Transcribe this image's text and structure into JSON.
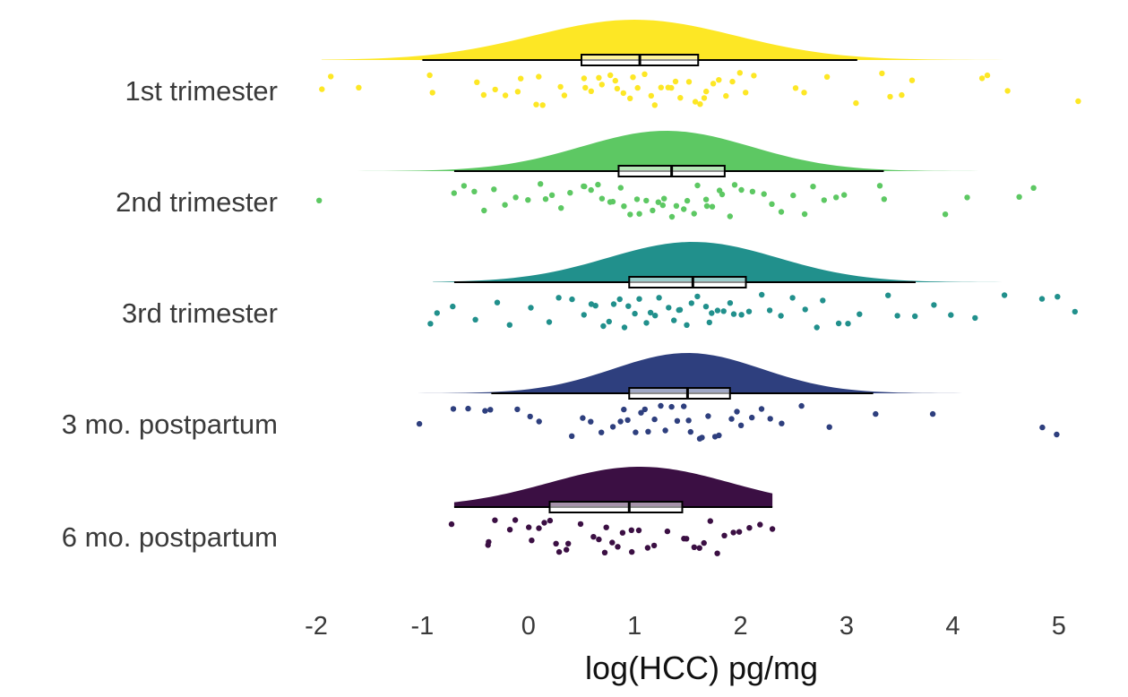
{
  "chart_data": {
    "type": "raincloud",
    "title": "",
    "xlabel": "log(HCC) pg/mg",
    "ylabel": "",
    "xlim": [
      -2,
      5.2
    ],
    "xticks": [
      -2,
      -1,
      0,
      1,
      2,
      3,
      4,
      5
    ],
    "xtick_labels": [
      "-2",
      "-1",
      "0",
      "1",
      "2",
      "3",
      "4",
      "5"
    ],
    "grid": false,
    "legend": "none",
    "series": [
      {
        "name": "1st trimester",
        "color": "#FDE725",
        "box": {
          "whisker_low": -1.0,
          "q1": 0.5,
          "median": 1.05,
          "q3": 1.6,
          "whisker_high": 3.1
        },
        "range": [
          -1.95,
          5.2
        ],
        "density_peak": 1.0,
        "density_sd": 0.95,
        "points": [
          -1.95,
          -1.85,
          -1.6,
          -0.95,
          -0.9,
          -0.5,
          -0.4,
          -0.3,
          -0.2,
          -0.1,
          -0.05,
          0.05,
          0.1,
          0.15,
          0.3,
          0.35,
          0.5,
          0.55,
          0.6,
          0.65,
          0.7,
          0.75,
          0.8,
          0.85,
          0.9,
          0.95,
          1.0,
          1.05,
          1.1,
          1.15,
          1.2,
          1.25,
          1.3,
          1.35,
          1.4,
          1.45,
          1.5,
          1.55,
          1.6,
          1.65,
          1.7,
          1.75,
          1.8,
          1.85,
          1.9,
          2.0,
          2.05,
          2.1,
          2.5,
          2.6,
          2.8,
          3.1,
          3.35,
          3.4,
          3.5,
          3.6,
          4.3,
          4.35,
          4.5,
          5.2
        ]
      },
      {
        "name": "2nd trimester",
        "color": "#5DC863",
        "box": {
          "whisker_low": -0.7,
          "q1": 0.85,
          "median": 1.35,
          "q3": 1.85,
          "whisker_high": 3.35
        },
        "range": [
          -1.95,
          4.75
        ],
        "density_peak": 1.3,
        "density_sd": 0.8,
        "points": [
          -1.95,
          -0.7,
          -0.6,
          -0.5,
          -0.4,
          -0.3,
          -0.2,
          -0.1,
          0.0,
          0.1,
          0.15,
          0.2,
          0.3,
          0.4,
          0.5,
          0.55,
          0.6,
          0.65,
          0.7,
          0.75,
          0.8,
          0.85,
          0.9,
          0.95,
          1.0,
          1.05,
          1.1,
          1.15,
          1.2,
          1.25,
          1.3,
          1.35,
          1.4,
          1.45,
          1.5,
          1.55,
          1.6,
          1.65,
          1.7,
          1.75,
          1.8,
          1.85,
          1.9,
          1.95,
          2.0,
          2.1,
          2.2,
          2.3,
          2.4,
          2.5,
          2.6,
          2.7,
          2.8,
          2.9,
          3.0,
          3.3,
          3.35,
          3.95,
          4.15,
          4.65,
          4.75
        ]
      },
      {
        "name": "3rd trimester",
        "color": "#21908C",
        "box": {
          "whisker_low": -0.7,
          "q1": 0.95,
          "median": 1.55,
          "q3": 2.05,
          "whisker_high": 3.65
        },
        "range": [
          -0.9,
          5.15
        ],
        "density_peak": 1.55,
        "density_sd": 0.8,
        "points": [
          -0.9,
          -0.85,
          -0.7,
          -0.5,
          -0.3,
          -0.2,
          0.0,
          0.2,
          0.3,
          0.4,
          0.5,
          0.6,
          0.65,
          0.7,
          0.75,
          0.8,
          0.85,
          0.9,
          0.95,
          1.0,
          1.05,
          1.1,
          1.15,
          1.2,
          1.25,
          1.3,
          1.35,
          1.4,
          1.45,
          1.5,
          1.55,
          1.6,
          1.65,
          1.7,
          1.75,
          1.8,
          1.85,
          1.9,
          1.95,
          2.0,
          2.1,
          2.2,
          2.3,
          2.4,
          2.5,
          2.6,
          2.7,
          2.8,
          2.9,
          3.0,
          3.1,
          3.4,
          3.5,
          3.65,
          3.8,
          4.0,
          4.2,
          4.5,
          4.85,
          5.0,
          5.15
        ]
      },
      {
        "name": "3 mo. postpartum",
        "color": "#2E3F7E",
        "box": {
          "whisker_low": -0.35,
          "q1": 0.95,
          "median": 1.5,
          "q3": 1.9,
          "whisker_high": 3.25
        },
        "range": [
          -1.05,
          5.0
        ],
        "density_peak": 1.5,
        "density_sd": 0.7,
        "points": [
          -1.05,
          -0.7,
          -0.55,
          -0.4,
          -0.35,
          -0.1,
          0.0,
          0.1,
          0.4,
          0.5,
          0.6,
          0.7,
          0.8,
          0.85,
          0.9,
          0.95,
          1.0,
          1.05,
          1.1,
          1.15,
          1.2,
          1.25,
          1.3,
          1.35,
          1.4,
          1.45,
          1.5,
          1.55,
          1.6,
          1.65,
          1.7,
          1.75,
          1.8,
          1.9,
          1.95,
          2.0,
          2.1,
          2.2,
          2.3,
          2.4,
          2.55,
          2.85,
          3.25,
          3.8,
          4.85,
          5.0
        ]
      },
      {
        "name": "6 mo. postpartum",
        "color": "#3B0F43",
        "box": {
          "whisker_low": -0.7,
          "q1": 0.2,
          "median": 0.95,
          "q3": 1.45,
          "whisker_high": 2.3
        },
        "range": [
          -0.7,
          2.3
        ],
        "density_peak": 1.05,
        "density_sd": 0.85,
        "points": [
          -0.7,
          -0.4,
          -0.35,
          -0.3,
          -0.2,
          -0.1,
          0.0,
          0.05,
          0.1,
          0.15,
          0.2,
          0.25,
          0.3,
          0.35,
          0.4,
          0.5,
          0.6,
          0.65,
          0.7,
          0.75,
          0.8,
          0.85,
          0.9,
          0.95,
          1.0,
          1.05,
          1.1,
          1.2,
          1.3,
          1.45,
          1.5,
          1.55,
          1.6,
          1.65,
          1.7,
          1.8,
          1.85,
          1.95,
          2.0,
          2.1,
          2.2,
          2.3
        ]
      }
    ]
  }
}
